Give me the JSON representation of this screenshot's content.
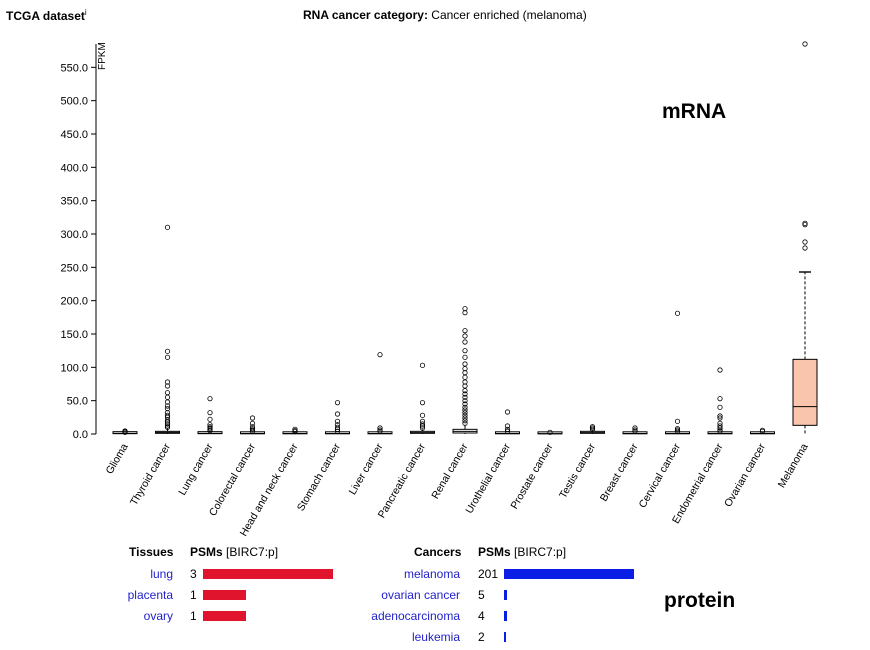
{
  "header": {
    "dataset_title": "TCGA dataset",
    "dataset_info_mark": "i",
    "category_label": "RNA cancer category:",
    "category_value": "Cancer enriched (melanoma)"
  },
  "overlay_labels": {
    "mrna": "mRNA",
    "protein": "protein"
  },
  "chart_data": {
    "type": "boxplot",
    "ylabel": "FPKM",
    "ylim": [
      0,
      585
    ],
    "yticks": [
      0,
      50,
      100,
      150,
      200,
      250,
      300,
      350,
      400,
      450,
      500,
      550
    ],
    "ytick_labels": [
      "0.0",
      "50.0",
      "100.0",
      "150.0",
      "200.0",
      "250.0",
      "300.0",
      "350.0",
      "400.0",
      "450.0",
      "500.0",
      "550.0"
    ],
    "box_color": "#f9c6ad",
    "default_box_color": "#ffffff",
    "categories": [
      {
        "name": "Glioma",
        "q1": 0.5,
        "median": 1,
        "q3": 1.5,
        "whisker_low": 0,
        "whisker_high": 2,
        "outliers": [
          2.5,
          3.5,
          4.5
        ]
      },
      {
        "name": "Thyroid cancer",
        "q1": 1,
        "median": 2.5,
        "q3": 4,
        "whisker_low": 0,
        "whisker_high": 8,
        "outliers": [
          10,
          12,
          15,
          18,
          21,
          25,
          28,
          32,
          38,
          42,
          48,
          55,
          62,
          72,
          78,
          115,
          124,
          310
        ]
      },
      {
        "name": "Lung cancer",
        "q1": 0.5,
        "median": 1,
        "q3": 2,
        "whisker_low": 0,
        "whisker_high": 4,
        "outliers": [
          5,
          7,
          9,
          11,
          14,
          22,
          32,
          53
        ]
      },
      {
        "name": "Colorectal cancer",
        "q1": 0.3,
        "median": 0.8,
        "q3": 1.5,
        "whisker_low": 0,
        "whisker_high": 3,
        "outliers": [
          4,
          6,
          8,
          11,
          16,
          24
        ]
      },
      {
        "name": "Head and neck cancer",
        "q1": 0.3,
        "median": 0.7,
        "q3": 1.3,
        "whisker_low": 0,
        "whisker_high": 2.5,
        "outliers": [
          3.5,
          5,
          7
        ]
      },
      {
        "name": "Stomach cancer",
        "q1": 0.3,
        "median": 0.8,
        "q3": 1.5,
        "whisker_low": 0,
        "whisker_high": 3,
        "outliers": [
          4,
          7,
          10,
          14,
          19,
          30,
          47
        ]
      },
      {
        "name": "Liver cancer",
        "q1": 0.3,
        "median": 0.8,
        "q3": 1.5,
        "whisker_low": 0,
        "whisker_high": 3,
        "outliers": [
          4,
          6,
          9,
          119
        ]
      },
      {
        "name": "Pancreatic cancer",
        "q1": 1,
        "median": 2,
        "q3": 4,
        "whisker_low": 0,
        "whisker_high": 7,
        "outliers": [
          9,
          12,
          15,
          19,
          28,
          47,
          103
        ]
      },
      {
        "name": "Renal cancer",
        "q1": 1.5,
        "median": 4,
        "q3": 7,
        "whisker_low": 0,
        "whisker_high": 14,
        "outliers": [
          16,
          20,
          24,
          28,
          32,
          36,
          40,
          45,
          50,
          55,
          60,
          65,
          72,
          78,
          85,
          92,
          98,
          105,
          115,
          125,
          138,
          147,
          155,
          182,
          188
        ]
      },
      {
        "name": "Urothelial cancer",
        "q1": 0.3,
        "median": 0.8,
        "q3": 1.5,
        "whisker_low": 0,
        "whisker_high": 3,
        "outliers": [
          4,
          7,
          12,
          33
        ]
      },
      {
        "name": "Prostate cancer",
        "q1": 0.2,
        "median": 0.5,
        "q3": 1,
        "whisker_low": 0,
        "whisker_high": 2,
        "outliers": [
          2.5
        ]
      },
      {
        "name": "Testis cancer",
        "q1": 1,
        "median": 2,
        "q3": 3,
        "whisker_low": 0,
        "whisker_high": 5,
        "outliers": [
          7,
          9,
          11
        ]
      },
      {
        "name": "Breast cancer",
        "q1": 0.3,
        "median": 0.8,
        "q3": 1.5,
        "whisker_low": 0,
        "whisker_high": 3,
        "outliers": [
          4,
          6,
          9
        ]
      },
      {
        "name": "Cervical cancer",
        "q1": 0.3,
        "median": 0.8,
        "q3": 1.5,
        "whisker_low": 0,
        "whisker_high": 3,
        "outliers": [
          4,
          6,
          8,
          19,
          181
        ]
      },
      {
        "name": "Endometrial cancer",
        "q1": 0.3,
        "median": 0.8,
        "q3": 1.5,
        "whisker_low": 0,
        "whisker_high": 3,
        "outliers": [
          4,
          6,
          9,
          12,
          16,
          24,
          27,
          40,
          53,
          96
        ]
      },
      {
        "name": "Ovarian cancer",
        "q1": 0.3,
        "median": 0.8,
        "q3": 1.5,
        "whisker_low": 0,
        "whisker_high": 3,
        "outliers": [
          4,
          5.5
        ]
      },
      {
        "name": "Melanoma",
        "q1": 13,
        "median": 41,
        "q3": 112,
        "whisker_low": 0,
        "whisker_high": 243,
        "outliers": [
          279,
          288,
          314,
          316,
          585
        ],
        "highlight": true
      }
    ]
  },
  "protein": {
    "tissues": {
      "header_name": "Tissues",
      "header_psms": "PSMs",
      "header_gene": "[BIRC7:p]",
      "bar_color": "#e0142d",
      "max_value": 3,
      "rows": [
        {
          "name": "lung",
          "value": "3",
          "n": 3
        },
        {
          "name": "placenta",
          "value": "1",
          "n": 1
        },
        {
          "name": "ovary",
          "value": "1",
          "n": 1
        }
      ]
    },
    "cancers": {
      "header_name": "Cancers",
      "header_psms": "PSMs",
      "header_gene": "[BIRC7:p]",
      "bar_color": "#0a1ee6",
      "max_value": 201,
      "rows": [
        {
          "name": "melanoma",
          "value": "201",
          "n": 201
        },
        {
          "name": "ovarian cancer",
          "value": "5",
          "n": 5
        },
        {
          "name": "adenocarcinoma",
          "value": "4",
          "n": 4
        },
        {
          "name": "leukemia",
          "value": "2",
          "n": 2
        }
      ]
    }
  }
}
